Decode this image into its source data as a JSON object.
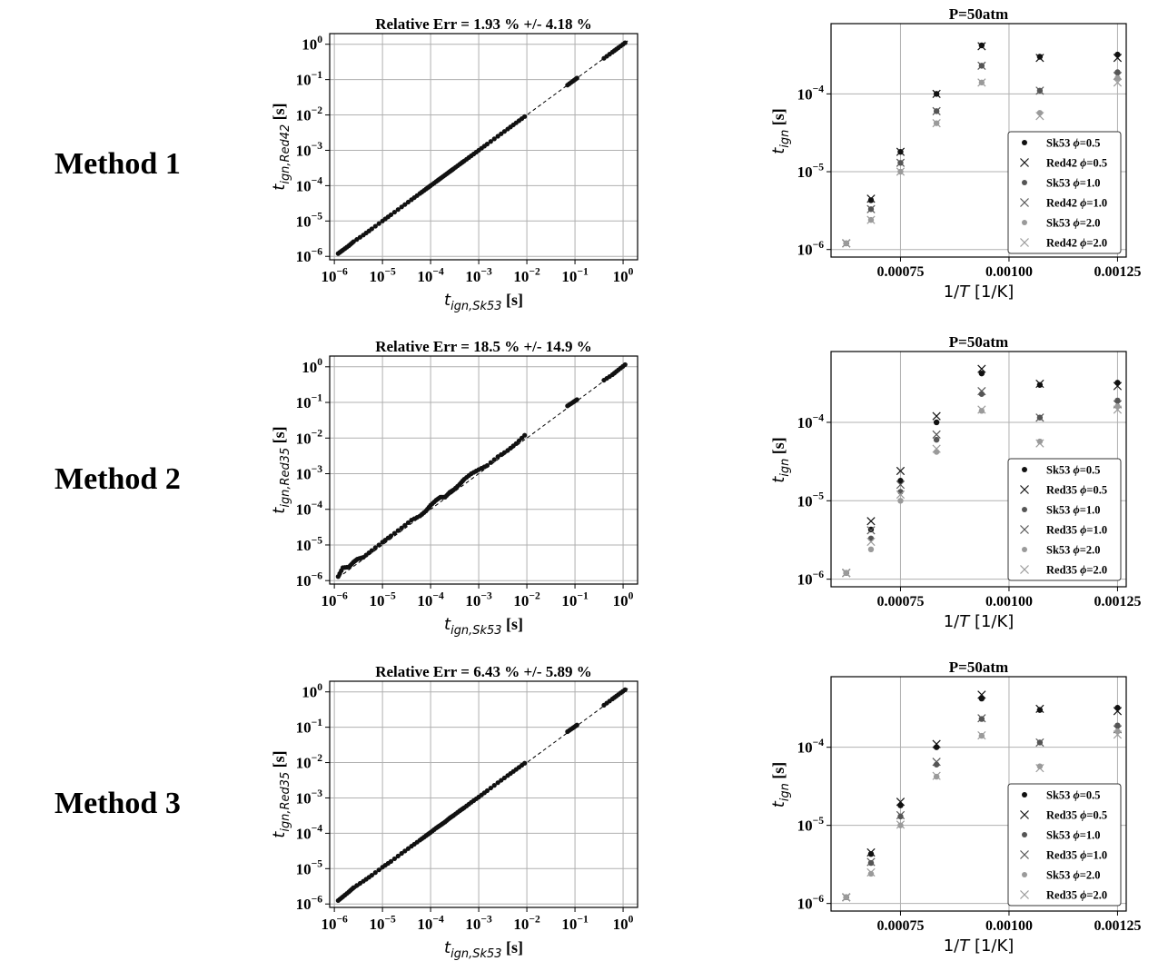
{
  "rows": [
    {
      "method_label": "Method 1",
      "parity": {
        "title": "Relative Err = 1.93 % +/- 4.18 %",
        "xlabel": "t_{ign,Sk53} [s]",
        "ylabel": "t_{ign,Red42} [s]"
      },
      "ignition": {
        "title": "P=50atm",
        "xlabel": "1/T [1/K]",
        "ylabel": "t_{ign} [s]",
        "legend": [
          "Sk53 ϕ=0.5",
          "Red42 ϕ=0.5",
          "Sk53 ϕ=1.0",
          "Red42 ϕ=1.0",
          "Sk53 ϕ=2.0",
          "Red42 ϕ=2.0"
        ]
      }
    },
    {
      "method_label": "Method 2",
      "parity": {
        "title": "Relative Err = 18.5 % +/- 14.9 %",
        "xlabel": "t_{ign,Sk53} [s]",
        "ylabel": "t_{ign,Red35} [s]"
      },
      "ignition": {
        "title": "P=50atm",
        "xlabel": "1/T [1/K]",
        "ylabel": "t_{ign} [s]",
        "legend": [
          "Sk53 ϕ=0.5",
          "Red35 ϕ=0.5",
          "Sk53 ϕ=1.0",
          "Red35 ϕ=1.0",
          "Sk53 ϕ=2.0",
          "Red35 ϕ=2.0"
        ]
      }
    },
    {
      "method_label": "Method 3",
      "parity": {
        "title": "Relative Err = 6.43 % +/- 5.89 %",
        "xlabel": "t_{ign,Sk53} [s]",
        "ylabel": "t_{ign,Red35} [s]"
      },
      "ignition": {
        "title": "P=50atm",
        "xlabel": "1/T [1/K]",
        "ylabel": "t_{ign} [s]",
        "legend": [
          "Sk53 ϕ=0.5",
          "Red35 ϕ=0.5",
          "Sk53 ϕ=1.0",
          "Red35 ϕ=1.0",
          "Sk53 ϕ=2.0",
          "Red35 ϕ=2.0"
        ]
      }
    }
  ],
  "colors": {
    "dark": "#111111",
    "mid": "#555555",
    "light": "#9a9a9a",
    "grid": "#b0b0b0"
  },
  "chart_data": [
    {
      "type": "scatter",
      "scale": "log-log",
      "title": "Relative Err = 1.93 % +/- 4.18 %",
      "xlabel": "t_{ign,Sk53} [s]",
      "ylabel": "t_{ign,Red42} [s]",
      "xlim": [
        8e-07,
        2
      ],
      "ylim": [
        8e-07,
        2
      ],
      "grid": true,
      "x_ticks": [
        "10^-6",
        "10^-5",
        "10^-4",
        "10^-3",
        "10^-2",
        "10^-1",
        "10^0"
      ],
      "y_ticks": [
        "10^-6",
        "10^-5",
        "10^-4",
        "10^-3",
        "10^-2",
        "10^-1",
        "10^0"
      ],
      "reference_line": "y = x (dashed)",
      "series": [
        {
          "x": [
            1.2e-06,
            1.5e-06,
            2e-06,
            2.5e-06,
            4e-06,
            6e-06,
            1e-05,
            1.5e-05,
            2.5e-05,
            4e-05,
            6e-05,
            8e-05,
            0.0001,
            0.00013,
            0.00016,
            0.0002,
            0.00025,
            0.0003,
            0.0004,
            0.0005,
            0.0007,
            0.001,
            0.0015,
            0.0025,
            0.004,
            0.006,
            0.009,
            0.07,
            0.09,
            0.11,
            0.4,
            0.6,
            0.8,
            1.1
          ],
          "y": [
            1.2e-06,
            1.5e-06,
            2e-06,
            2.6e-06,
            4e-06,
            6e-06,
            1e-05,
            1.5e-05,
            2.5e-05,
            4e-05,
            6e-05,
            8e-05,
            0.0001,
            0.00013,
            0.00016,
            0.0002,
            0.00025,
            0.0003,
            0.0004,
            0.0005,
            0.0007,
            0.001,
            0.0015,
            0.0025,
            0.004,
            0.006,
            0.009,
            0.07,
            0.09,
            0.11,
            0.4,
            0.6,
            0.8,
            1.1
          ]
        }
      ]
    },
    {
      "type": "scatter",
      "scale": "semilog-y",
      "title": "P=50atm",
      "xlabel": "1/T [1/K]",
      "ylabel": "t_{ign} [s]",
      "xlim": [
        0.00059,
        0.00127
      ],
      "ylim": [
        8e-07,
        0.0008
      ],
      "grid": true,
      "x_ticks": [
        "0.00075",
        "0.00100",
        "0.00125"
      ],
      "y_ticks": [
        "10^-6",
        "10^-5",
        "10^-4"
      ],
      "legend_position": "lower-right",
      "x": [
        0.000625,
        0.000682,
        0.00075,
        0.000833,
        0.000937,
        0.001071,
        0.00125
      ],
      "series": [
        {
          "name": "Sk53 ϕ=0.5",
          "marker": "dot",
          "color": "dark",
          "values": [
            1.2e-06,
            4.3e-06,
            1.8e-05,
            0.0001,
            0.00042,
            0.0003,
            0.00032
          ]
        },
        {
          "name": "Red42 ϕ=0.5",
          "marker": "x",
          "color": "dark",
          "values": [
            1.2e-06,
            4.5e-06,
            1.8e-05,
            0.0001,
            0.00041,
            0.00029,
            0.00029
          ]
        },
        {
          "name": "Sk53 ϕ=1.0",
          "marker": "dot",
          "color": "mid",
          "values": [
            1.2e-06,
            3.3e-06,
            1.3e-05,
            6e-05,
            0.00023,
            0.00011,
            0.00019
          ]
        },
        {
          "name": "Red42 ϕ=1.0",
          "marker": "x",
          "color": "mid",
          "values": [
            1.2e-06,
            3.3e-06,
            1.3e-05,
            6e-05,
            0.00023,
            0.00011,
            0.00017
          ]
        },
        {
          "name": "Sk53 ϕ=2.0",
          "marker": "dot",
          "color": "light",
          "values": [
            1.2e-06,
            2.4e-06,
            1e-05,
            4.2e-05,
            0.00014,
            5.7e-05,
            0.00016
          ]
        },
        {
          "name": "Red42 ϕ=2.0",
          "marker": "x",
          "color": "light",
          "values": [
            1.2e-06,
            2.4e-06,
            1e-05,
            4.2e-05,
            0.00014,
            5.2e-05,
            0.00014
          ]
        }
      ]
    },
    {
      "type": "scatter",
      "scale": "log-log",
      "title": "Relative Err = 18.5 % +/- 14.9 %",
      "xlabel": "t_{ign,Sk53} [s]",
      "ylabel": "t_{ign,Red35} [s]",
      "xlim": [
        8e-07,
        2
      ],
      "ylim": [
        8e-07,
        2
      ],
      "grid": true,
      "x_ticks": [
        "10^-6",
        "10^-5",
        "10^-4",
        "10^-3",
        "10^-2",
        "10^-1",
        "10^0"
      ],
      "y_ticks": [
        "10^-6",
        "10^-5",
        "10^-4",
        "10^-3",
        "10^-2",
        "10^-1",
        "10^0"
      ],
      "reference_line": "y = x (dashed)",
      "series": [
        {
          "x": [
            1.2e-06,
            1.5e-06,
            2e-06,
            2.5e-06,
            3e-06,
            4e-06,
            6e-06,
            1e-05,
            1.5e-05,
            2.5e-05,
            4e-05,
            6e-05,
            8e-05,
            0.0001,
            0.00013,
            0.00016,
            0.0002,
            0.00025,
            0.0003,
            0.0004,
            0.0005,
            0.0007,
            0.001,
            0.0015,
            0.0025,
            0.004,
            0.006,
            0.009,
            0.07,
            0.09,
            0.11,
            0.4,
            0.6,
            0.8,
            1.1
          ],
          "y": [
            1.3e-06,
            2.3e-06,
            2.4e-06,
            3.3e-06,
            4e-06,
            4.5e-06,
            7e-06,
            1.2e-05,
            1.8e-05,
            3e-05,
            5e-05,
            6.5e-05,
            9e-05,
            0.00013,
            0.00018,
            0.00022,
            0.00022,
            0.0003,
            0.00035,
            0.0005,
            0.0007,
            0.001,
            0.0013,
            0.0017,
            0.003,
            0.0045,
            0.007,
            0.012,
            0.08,
            0.1,
            0.12,
            0.42,
            0.6,
            0.82,
            1.15
          ]
        }
      ]
    },
    {
      "type": "scatter",
      "scale": "semilog-y",
      "title": "P=50atm",
      "xlabel": "1/T [1/K]",
      "ylabel": "t_{ign} [s]",
      "xlim": [
        0.00059,
        0.00127
      ],
      "ylim": [
        8e-07,
        0.0008
      ],
      "grid": true,
      "x_ticks": [
        "0.00075",
        "0.00100",
        "0.00125"
      ],
      "y_ticks": [
        "10^-6",
        "10^-5",
        "10^-4"
      ],
      "legend_position": "lower-right",
      "x": [
        0.000625,
        0.000682,
        0.00075,
        0.000833,
        0.000937,
        0.001071,
        0.00125
      ],
      "series": [
        {
          "name": "Sk53 ϕ=0.5",
          "marker": "dot",
          "color": "dark",
          "values": [
            1.2e-06,
            4.3e-06,
            1.8e-05,
            0.0001,
            0.00042,
            0.0003,
            0.00032
          ]
        },
        {
          "name": "Red35 ϕ=0.5",
          "marker": "x",
          "color": "dark",
          "values": [
            1.2e-06,
            5.5e-06,
            2.4e-05,
            0.00012,
            0.00048,
            0.00031,
            0.00029
          ]
        },
        {
          "name": "Sk53 ϕ=1.0",
          "marker": "dot",
          "color": "mid",
          "values": [
            1.2e-06,
            3.3e-06,
            1.3e-05,
            6e-05,
            0.00023,
            0.000115,
            0.00019
          ]
        },
        {
          "name": "Red35 ϕ=1.0",
          "marker": "x",
          "color": "mid",
          "values": [
            1.2e-06,
            4.2e-06,
            1.6e-05,
            7e-05,
            0.00025,
            0.000115,
            0.00017
          ]
        },
        {
          "name": "Sk53 ϕ=2.0",
          "marker": "dot",
          "color": "light",
          "values": [
            1.2e-06,
            2.4e-06,
            1e-05,
            4.2e-05,
            0.00014,
            5.7e-05,
            0.00016
          ]
        },
        {
          "name": "Red35 ϕ=2.0",
          "marker": "x",
          "color": "light",
          "values": [
            1.2e-06,
            3e-06,
            1.2e-05,
            4.6e-05,
            0.000145,
            5.4e-05,
            0.000145
          ]
        }
      ]
    },
    {
      "type": "scatter",
      "scale": "log-log",
      "title": "Relative Err = 6.43 % +/- 5.89 %",
      "xlabel": "t_{ign,Sk53} [s]",
      "ylabel": "t_{ign,Red35} [s]",
      "xlim": [
        8e-07,
        2
      ],
      "ylim": [
        8e-07,
        2
      ],
      "grid": true,
      "x_ticks": [
        "10^-6",
        "10^-5",
        "10^-4",
        "10^-3",
        "10^-2",
        "10^-1",
        "10^0"
      ],
      "y_ticks": [
        "10^-6",
        "10^-5",
        "10^-4",
        "10^-3",
        "10^-2",
        "10^-1",
        "10^0"
      ],
      "reference_line": "y = x (dashed)",
      "series": [
        {
          "x": [
            1.2e-06,
            1.5e-06,
            2e-06,
            2.5e-06,
            4e-06,
            6e-06,
            1e-05,
            1.5e-05,
            2.5e-05,
            4e-05,
            6e-05,
            8e-05,
            0.0001,
            0.00013,
            0.00016,
            0.0002,
            0.00025,
            0.0003,
            0.0004,
            0.0005,
            0.0007,
            0.001,
            0.0015,
            0.0025,
            0.004,
            0.006,
            0.009,
            0.07,
            0.09,
            0.11,
            0.4,
            0.6,
            0.8,
            1.1
          ],
          "y": [
            1.25e-06,
            1.6e-06,
            2.2e-06,
            2.9e-06,
            4.4e-06,
            6.5e-06,
            1.1e-05,
            1.6e-05,
            2.7e-05,
            4.3e-05,
            6.4e-05,
            8.5e-05,
            0.000106,
            0.00014,
            0.00017,
            0.00021,
            0.00027,
            0.00032,
            0.00043,
            0.00053,
            0.00075,
            0.00106,
            0.0016,
            0.0027,
            0.0043,
            0.0064,
            0.0096,
            0.075,
            0.095,
            0.115,
            0.42,
            0.63,
            0.84,
            1.15
          ]
        }
      ]
    },
    {
      "type": "scatter",
      "scale": "semilog-y",
      "title": "P=50atm",
      "xlabel": "1/T [1/K]",
      "ylabel": "t_{ign} [s]",
      "xlim": [
        0.00059,
        0.00127
      ],
      "ylim": [
        8e-07,
        0.0008
      ],
      "grid": true,
      "x_ticks": [
        "0.00075",
        "0.00100",
        "0.00125"
      ],
      "y_ticks": [
        "10^-6",
        "10^-5",
        "10^-4"
      ],
      "legend_position": "lower-right",
      "x": [
        0.000625,
        0.000682,
        0.00075,
        0.000833,
        0.000937,
        0.001071,
        0.00125
      ],
      "series": [
        {
          "name": "Sk53 ϕ=0.5",
          "marker": "dot",
          "color": "dark",
          "values": [
            1.2e-06,
            4.3e-06,
            1.8e-05,
            0.0001,
            0.00042,
            0.0003,
            0.00032
          ]
        },
        {
          "name": "Red35 ϕ=0.5",
          "marker": "x",
          "color": "dark",
          "values": [
            1.2e-06,
            4.5e-06,
            2e-05,
            0.00011,
            0.00047,
            0.00031,
            0.00029
          ]
        },
        {
          "name": "Sk53 ϕ=1.0",
          "marker": "dot",
          "color": "mid",
          "values": [
            1.2e-06,
            3.3e-06,
            1.3e-05,
            6e-05,
            0.00023,
            0.000115,
            0.00019
          ]
        },
        {
          "name": "Red35 ϕ=1.0",
          "marker": "x",
          "color": "mid",
          "values": [
            1.2e-06,
            3.4e-06,
            1.35e-05,
            6.5e-05,
            0.000235,
            0.000115,
            0.00017
          ]
        },
        {
          "name": "Sk53 ϕ=2.0",
          "marker": "dot",
          "color": "light",
          "values": [
            1.2e-06,
            2.4e-06,
            1e-05,
            4.2e-05,
            0.00014,
            5.7e-05,
            0.00016
          ]
        },
        {
          "name": "Red35 ϕ=2.0",
          "marker": "x",
          "color": "light",
          "values": [
            1.2e-06,
            2.5e-06,
            1.02e-05,
            4.3e-05,
            0.000142,
            5.4e-05,
            0.000145
          ]
        }
      ]
    }
  ]
}
